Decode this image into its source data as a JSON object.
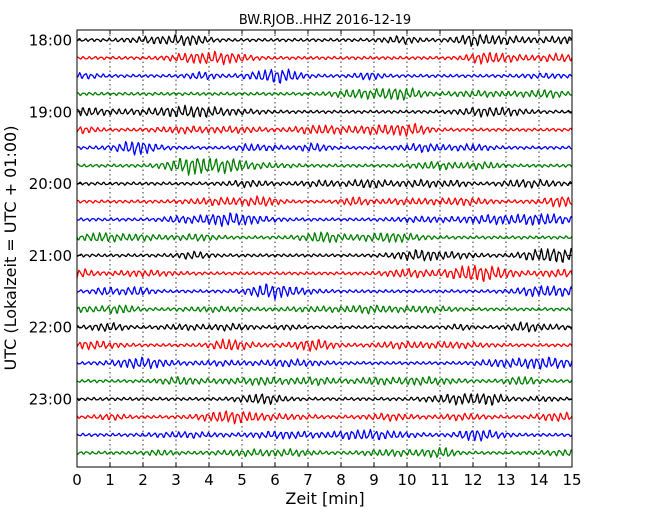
{
  "chart_data": {
    "type": "line",
    "title": "BW.RJOB..HHZ 2016-12-19",
    "xlabel": "Zeit  [min]",
    "ylabel": "UTC (Lokalzeit = UTC + 01:00)",
    "xlim": [
      0,
      15
    ],
    "x_ticks": [
      0,
      1,
      2,
      3,
      4,
      5,
      6,
      7,
      8,
      9,
      10,
      11,
      12,
      13,
      14,
      15
    ],
    "x_tick_labels": [
      "0",
      "1",
      "2",
      "3",
      "4",
      "5",
      "6",
      "7",
      "8",
      "9",
      "10",
      "11",
      "12",
      "13",
      "14",
      "15"
    ],
    "y_tick_labels": [
      "18:00",
      "19:00",
      "20:00",
      "21:00",
      "22:00",
      "23:00"
    ],
    "trace_minutes": 15,
    "trace_count": 24,
    "trace_colors": [
      "#000000",
      "#ff0000",
      "#0000ff",
      "#008000"
    ],
    "grid": {
      "x": true,
      "style": "dotted"
    },
    "series_note": "",
    "trace_start_times": [
      "18:00",
      "18:15",
      "18:30",
      "18:45",
      "19:00",
      "19:15",
      "19:30",
      "19:45",
      "20:00",
      "20:15",
      "20:30",
      "20:45",
      "21:00",
      "21:15",
      "21:30",
      "21:45",
      "22:00",
      "22:15",
      "22:30",
      "22:45",
      "23:00",
      "23:15",
      "23:30",
      "23:45"
    ]
  }
}
